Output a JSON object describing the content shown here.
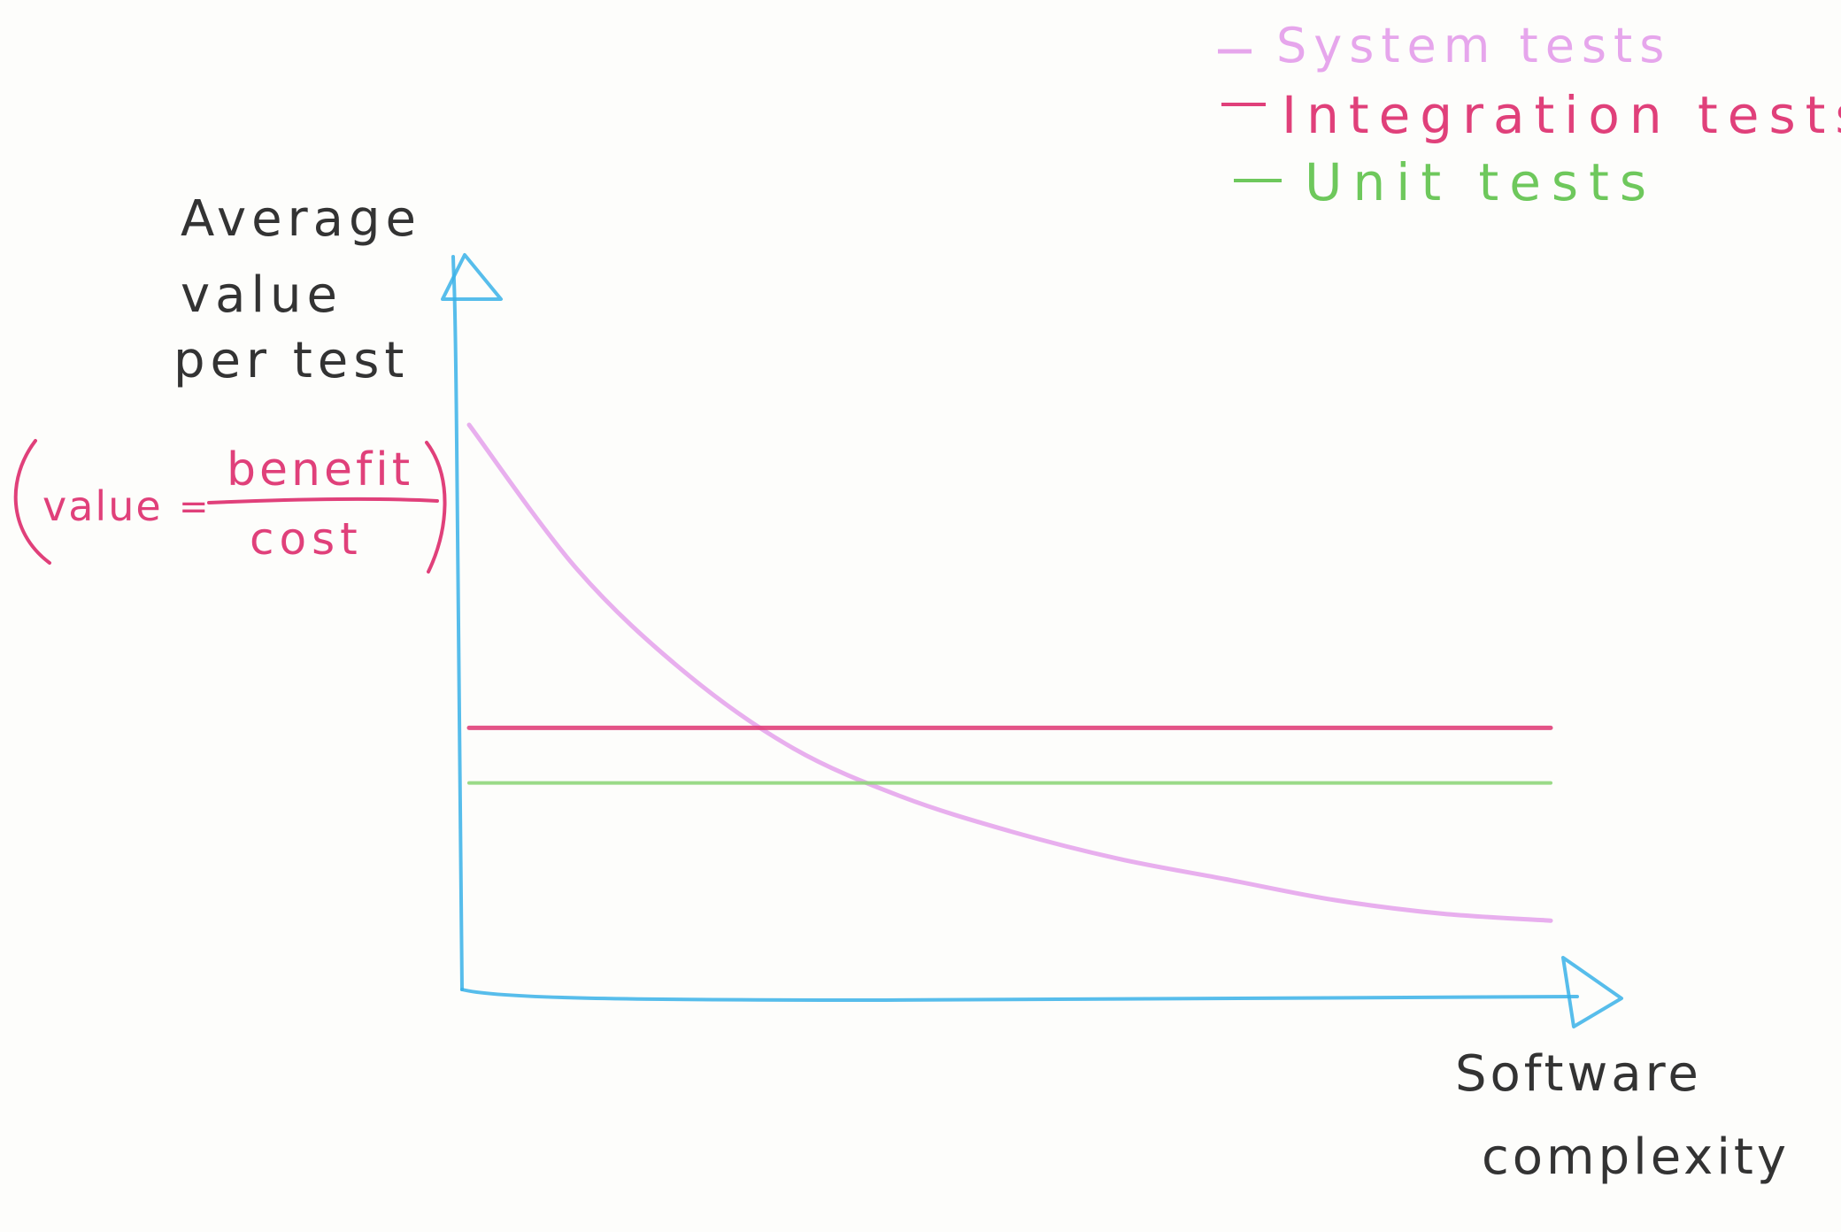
{
  "chart_data": {
    "type": "line",
    "ylabel_lines": [
      "Average",
      "value",
      "per test"
    ],
    "formula": {
      "lhs": "value",
      "eq": "=",
      "numerator": "benefit",
      "denominator": "cost"
    },
    "xlabel_lines": [
      "Software",
      "complexity"
    ],
    "legend_position": "top-right",
    "series": [
      {
        "name": "System tests",
        "color": "#e6a6ec",
        "x": [
          0,
          10,
          20,
          30,
          40,
          50,
          60,
          70,
          80,
          90,
          100
        ],
        "values": [
          8.2,
          6.1,
          4.6,
          3.5,
          2.8,
          2.3,
          1.9,
          1.6,
          1.3,
          1.1,
          1.0
        ]
      },
      {
        "name": "Integration tests",
        "color": "#e0407a",
        "x": [
          0,
          100
        ],
        "values": [
          3.8,
          3.8
        ]
      },
      {
        "name": "Unit tests",
        "color": "#8fd67a",
        "x": [
          0,
          100
        ],
        "values": [
          3.0,
          3.0
        ]
      }
    ],
    "axis_color": "#3ab2e8",
    "xlim": [
      0,
      100
    ],
    "ylim": [
      0,
      10
    ],
    "grid": false
  }
}
